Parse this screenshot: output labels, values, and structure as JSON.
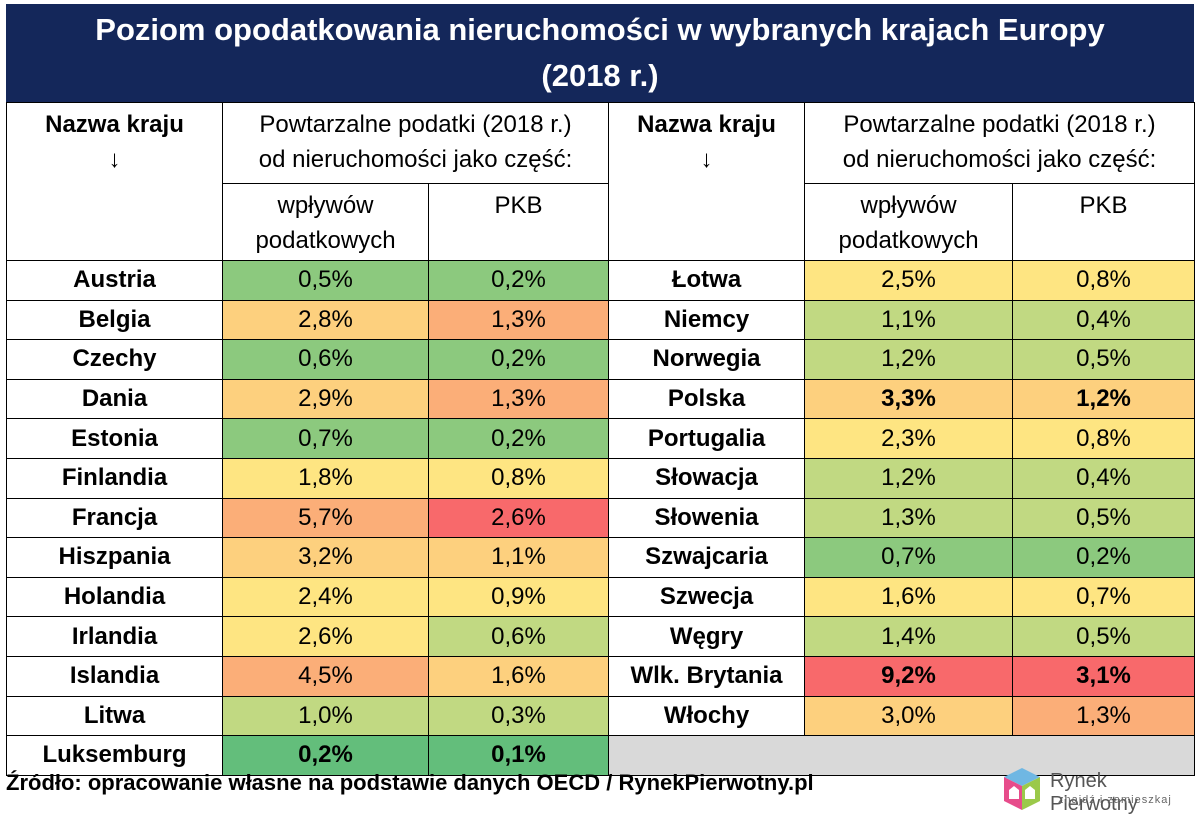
{
  "title_line1": "Poziom opodatkowania nieruchomości w wybranych krajach Europy",
  "title_line2": "(2018 r.)",
  "headers": {
    "country": "Nazwa kraju",
    "arrow": "↓",
    "group_line1": "Powtarzalne podatki (2018 r.)",
    "group_line2": "od nieruchomości jako część:",
    "col_revenue_line1": "wpływów",
    "col_revenue_line2": "podatkowych",
    "col_gdp": "PKB"
  },
  "colors": {
    "title_bg": "#14275a",
    "dark_green": "#63be7b",
    "green": "#8cc97e",
    "light_green": "#c1d982",
    "yellow": "#fee582",
    "light_orange": "#fdd07e",
    "orange": "#fbae78",
    "red": "#f8696b",
    "empty": "#d9d9d9"
  },
  "chart_data": {
    "type": "table",
    "title": "Poziom opodatkowania nieruchomości w wybranych krajach Europy (2018 r.)",
    "columns": [
      "Nazwa kraju",
      "wpływów podatkowych",
      "PKB"
    ],
    "left_rows": [
      {
        "country": "Austria",
        "revenue": "0,5%",
        "gdp": "0,2%",
        "c1": "green",
        "c2": "green"
      },
      {
        "country": "Belgia",
        "revenue": "2,8%",
        "gdp": "1,3%",
        "c1": "light_orange",
        "c2": "orange"
      },
      {
        "country": "Czechy",
        "revenue": "0,6%",
        "gdp": "0,2%",
        "c1": "green",
        "c2": "green"
      },
      {
        "country": "Dania",
        "revenue": "2,9%",
        "gdp": "1,3%",
        "c1": "light_orange",
        "c2": "orange"
      },
      {
        "country": "Estonia",
        "revenue": "0,7%",
        "gdp": "0,2%",
        "c1": "green",
        "c2": "green"
      },
      {
        "country": "Finlandia",
        "revenue": "1,8%",
        "gdp": "0,8%",
        "c1": "yellow",
        "c2": "yellow"
      },
      {
        "country": "Francja",
        "revenue": "5,7%",
        "gdp": "2,6%",
        "c1": "orange",
        "c2": "red"
      },
      {
        "country": "Hiszpania",
        "revenue": "3,2%",
        "gdp": "1,1%",
        "c1": "light_orange",
        "c2": "light_orange"
      },
      {
        "country": "Holandia",
        "revenue": "2,4%",
        "gdp": "0,9%",
        "c1": "yellow",
        "c2": "yellow"
      },
      {
        "country": "Irlandia",
        "revenue": "2,6%",
        "gdp": "0,6%",
        "c1": "yellow",
        "c2": "light_green"
      },
      {
        "country": "Islandia",
        "revenue": "4,5%",
        "gdp": "1,6%",
        "c1": "orange",
        "c2": "light_orange"
      },
      {
        "country": "Litwa",
        "revenue": "1,0%",
        "gdp": "0,3%",
        "c1": "light_green",
        "c2": "light_green"
      },
      {
        "country": "Luksemburg",
        "revenue": "0,2%",
        "gdp": "0,1%",
        "c1": "dark_green",
        "c2": "dark_green",
        "style": "white"
      }
    ],
    "right_rows": [
      {
        "country": "Łotwa",
        "revenue": "2,5%",
        "gdp": "0,8%",
        "c1": "yellow",
        "c2": "yellow"
      },
      {
        "country": "Niemcy",
        "revenue": "1,1%",
        "gdp": "0,4%",
        "c1": "light_green",
        "c2": "light_green"
      },
      {
        "country": "Norwegia",
        "revenue": "1,2%",
        "gdp": "0,5%",
        "c1": "light_green",
        "c2": "light_green"
      },
      {
        "country": "Polska",
        "revenue": "3,3%",
        "gdp": "1,2%",
        "c1": "light_orange",
        "c2": "light_orange",
        "style": "bold"
      },
      {
        "country": "Portugalia",
        "revenue": "2,3%",
        "gdp": "0,8%",
        "c1": "yellow",
        "c2": "yellow"
      },
      {
        "country": "Słowacja",
        "revenue": "1,2%",
        "gdp": "0,4%",
        "c1": "light_green",
        "c2": "light_green"
      },
      {
        "country": "Słowenia",
        "revenue": "1,3%",
        "gdp": "0,5%",
        "c1": "light_green",
        "c2": "light_green"
      },
      {
        "country": "Szwajcaria",
        "revenue": "0,7%",
        "gdp": "0,2%",
        "c1": "green",
        "c2": "green"
      },
      {
        "country": "Szwecja",
        "revenue": "1,6%",
        "gdp": "0,7%",
        "c1": "yellow",
        "c2": "yellow"
      },
      {
        "country": "Węgry",
        "revenue": "1,4%",
        "gdp": "0,5%",
        "c1": "light_green",
        "c2": "light_green"
      },
      {
        "country": "Wlk. Brytania",
        "revenue": "9,2%",
        "gdp": "3,1%",
        "c1": "red",
        "c2": "red",
        "style": "white"
      },
      {
        "country": "Włochy",
        "revenue": "3,0%",
        "gdp": "1,3%",
        "c1": "light_orange",
        "c2": "orange"
      }
    ]
  },
  "source": "Źródło: opracowanie własne na podstawie danych OECD / RynekPierwotny.pl",
  "logo": {
    "name": "Rynek Pierwotny",
    "tagline": "znajdź i zamieszkaj",
    "icon": "house-cube-logo-icon"
  }
}
